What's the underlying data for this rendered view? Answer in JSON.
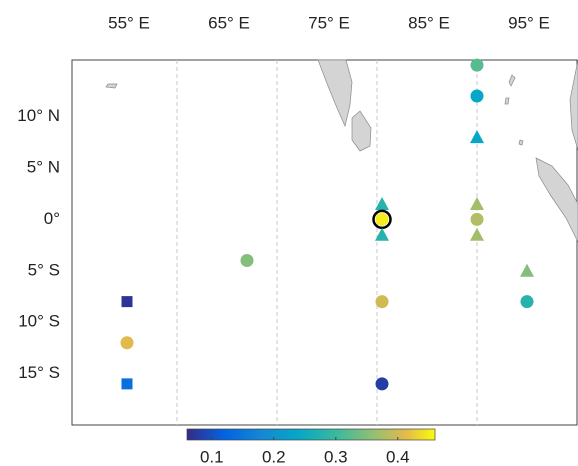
{
  "chart_data": {
    "type": "map-scatter",
    "colormap": "parula",
    "xlim": [
      49.5,
      100
    ],
    "ylim": [
      -20,
      15.5
    ],
    "xticks": [
      {
        "value": 55,
        "label": "55° E"
      },
      {
        "value": 65,
        "label": "65° E"
      },
      {
        "value": 75,
        "label": "75° E"
      },
      {
        "value": 85,
        "label": "85° E"
      },
      {
        "value": 95,
        "label": "95° E"
      }
    ],
    "yticks": [
      {
        "value": 10,
        "label": "10° N"
      },
      {
        "value": 5,
        "label": "5° N"
      },
      {
        "value": 0,
        "label": "0°"
      },
      {
        "value": -5,
        "label": "5° S"
      },
      {
        "value": -10,
        "label": "10° S"
      },
      {
        "value": -15,
        "label": "15° S"
      }
    ],
    "grid_x": [
      60,
      70,
      80,
      90
    ],
    "clim": [
      0.06,
      0.46
    ],
    "cticks": [
      0.1,
      0.2,
      0.3,
      0.4
    ],
    "points": [
      {
        "x": 90,
        "y": 15,
        "value": 0.32,
        "marker": "circle"
      },
      {
        "x": 90,
        "y": 12,
        "value": 0.24,
        "marker": "circle"
      },
      {
        "x": 90,
        "y": 8,
        "value": 0.24,
        "marker": "triangle"
      },
      {
        "x": 90,
        "y": 1.5,
        "value": 0.37,
        "marker": "triangle"
      },
      {
        "x": 90,
        "y": 0,
        "value": 0.38,
        "marker": "circle"
      },
      {
        "x": 90,
        "y": -1.5,
        "value": 0.37,
        "marker": "triangle"
      },
      {
        "x": 80.5,
        "y": 1.5,
        "value": 0.28,
        "marker": "triangle"
      },
      {
        "x": 80.5,
        "y": 0,
        "value": 0.45,
        "marker": "circle",
        "highlight": true
      },
      {
        "x": 80.5,
        "y": -1.5,
        "value": 0.28,
        "marker": "triangle"
      },
      {
        "x": 67,
        "y": -4,
        "value": 0.35,
        "marker": "circle"
      },
      {
        "x": 80.5,
        "y": -8,
        "value": 0.4,
        "marker": "circle"
      },
      {
        "x": 80.5,
        "y": -16,
        "value": 0.08,
        "marker": "circle"
      },
      {
        "x": 95,
        "y": -5,
        "value": 0.35,
        "marker": "triangle"
      },
      {
        "x": 95,
        "y": -8,
        "value": 0.28,
        "marker": "circle"
      },
      {
        "x": 55,
        "y": -8,
        "value": 0.07,
        "marker": "square"
      },
      {
        "x": 55,
        "y": -12,
        "value": 0.41,
        "marker": "circle"
      },
      {
        "x": 55,
        "y": -16,
        "value": 0.14,
        "marker": "square"
      }
    ]
  }
}
